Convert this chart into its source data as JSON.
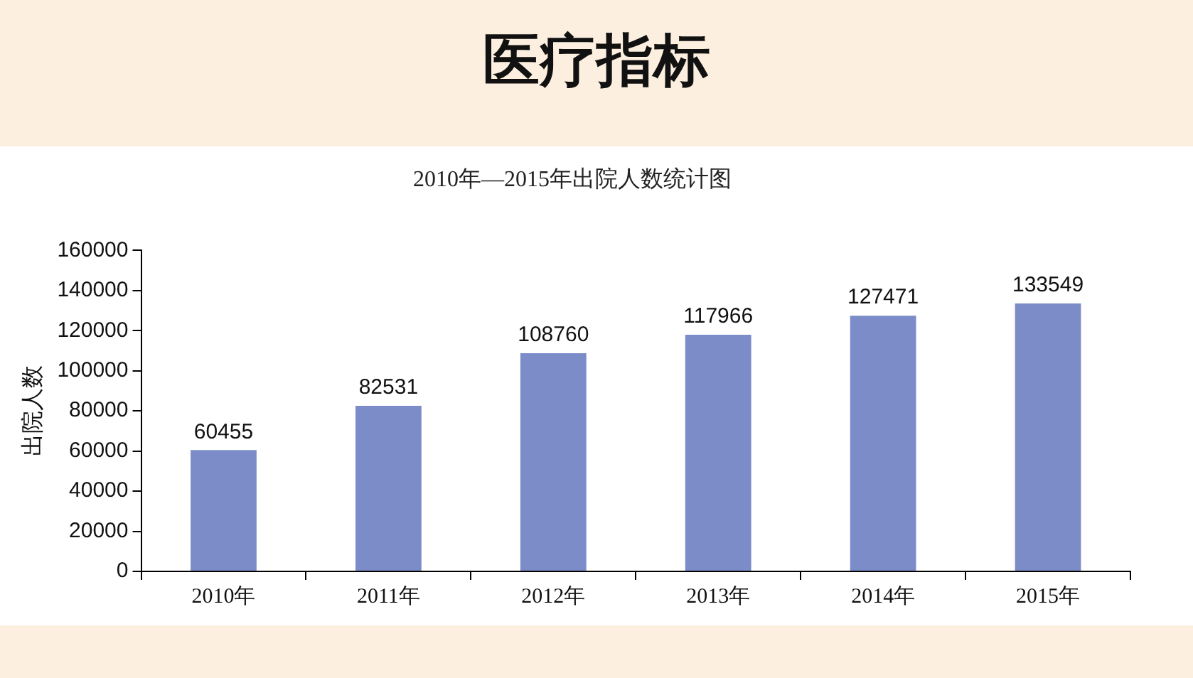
{
  "chart_data": {
    "type": "bar",
    "title": "医疗指标",
    "subtitle": "2010年—2015年出院人数统计图",
    "ylabel": "出院人数",
    "categories": [
      "2010年",
      "2011年",
      "2012年",
      "2013年",
      "2014年",
      "2015年"
    ],
    "values": [
      60455,
      82531,
      108760,
      117966,
      127471,
      133549
    ],
    "color": "#7b8cc8",
    "ylim": [
      0,
      160000
    ],
    "yticks": [
      0,
      20000,
      40000,
      60000,
      80000,
      100000,
      120000,
      140000,
      160000
    ],
    "grid": false,
    "data_labels": true
  }
}
